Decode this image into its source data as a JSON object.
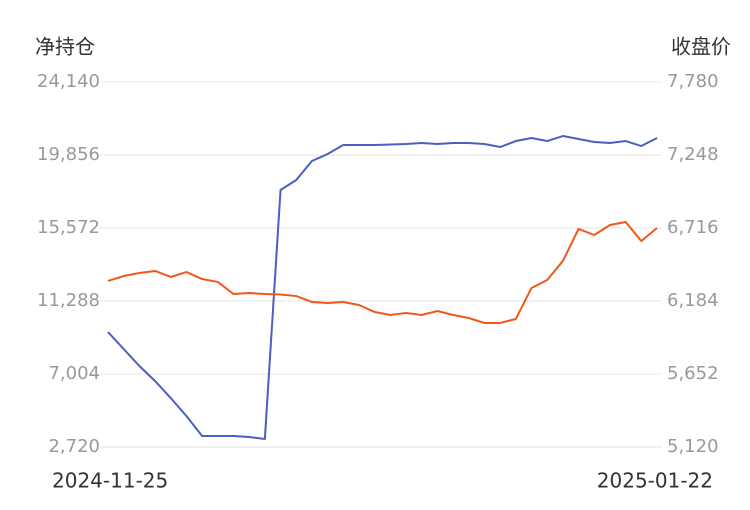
{
  "chart_data": {
    "type": "line",
    "ylabel": "净持仓",
    "y2label": "收盘价",
    "categories": [
      "2024-11-25",
      null,
      null,
      null,
      null,
      null,
      null,
      null,
      null,
      null,
      null,
      null,
      null,
      null,
      null,
      null,
      null,
      null,
      null,
      null,
      null,
      null,
      null,
      null,
      null,
      null,
      null,
      null,
      null,
      null,
      null,
      null,
      null,
      null,
      null,
      "2025-01-22"
    ],
    "series": [
      {
        "color": "#4a5fc1",
        "values": [
          9468,
          8471,
          7473,
          6593,
          5595,
          4539,
          3365,
          3365,
          3365,
          3307,
          3189,
          17801,
          18388,
          19503,
          19913,
          20441,
          20441,
          20441,
          20470,
          20500,
          20559,
          20500,
          20559,
          20559,
          20500,
          20324,
          20676,
          20852,
          20676,
          20969,
          20793,
          20617,
          20559,
          20676,
          20383,
          20852
        ]
      },
      {
        "color": "#f0581a",
        "axis": "y2",
        "values": [
          6330,
          6366,
          6388,
          6403,
          6359,
          6395,
          6344,
          6323,
          6235,
          6242,
          6235,
          6231,
          6220,
          6177,
          6169,
          6177,
          6155,
          6104,
          6082,
          6097,
          6082,
          6111,
          6082,
          6060,
          6024,
          6024,
          6053,
          6279,
          6337,
          6476,
          6709,
          6665,
          6738,
          6760,
          6621,
          6716
        ]
      }
    ],
    "ylim": [
      2720,
      24140
    ],
    "yticks": [
      {
        "value": 2720,
        "label": "2,720"
      },
      {
        "value": 7004,
        "label": "7,004"
      },
      {
        "value": 11288,
        "label": "11,288"
      },
      {
        "value": 15572,
        "label": "15,572"
      },
      {
        "value": 19856,
        "label": "19,856"
      },
      {
        "value": 24140,
        "label": "24,140"
      }
    ],
    "y2lim": [
      5120,
      7780
    ],
    "y2ticks": [
      {
        "value": 5120,
        "label": "5,120"
      },
      {
        "value": 5652,
        "label": "5,652"
      },
      {
        "value": 6184,
        "label": "6,184"
      },
      {
        "value": 6716,
        "label": "6,716"
      },
      {
        "value": 7248,
        "label": "7,248"
      },
      {
        "value": 7780,
        "label": "7,780"
      }
    ],
    "grid": true
  }
}
